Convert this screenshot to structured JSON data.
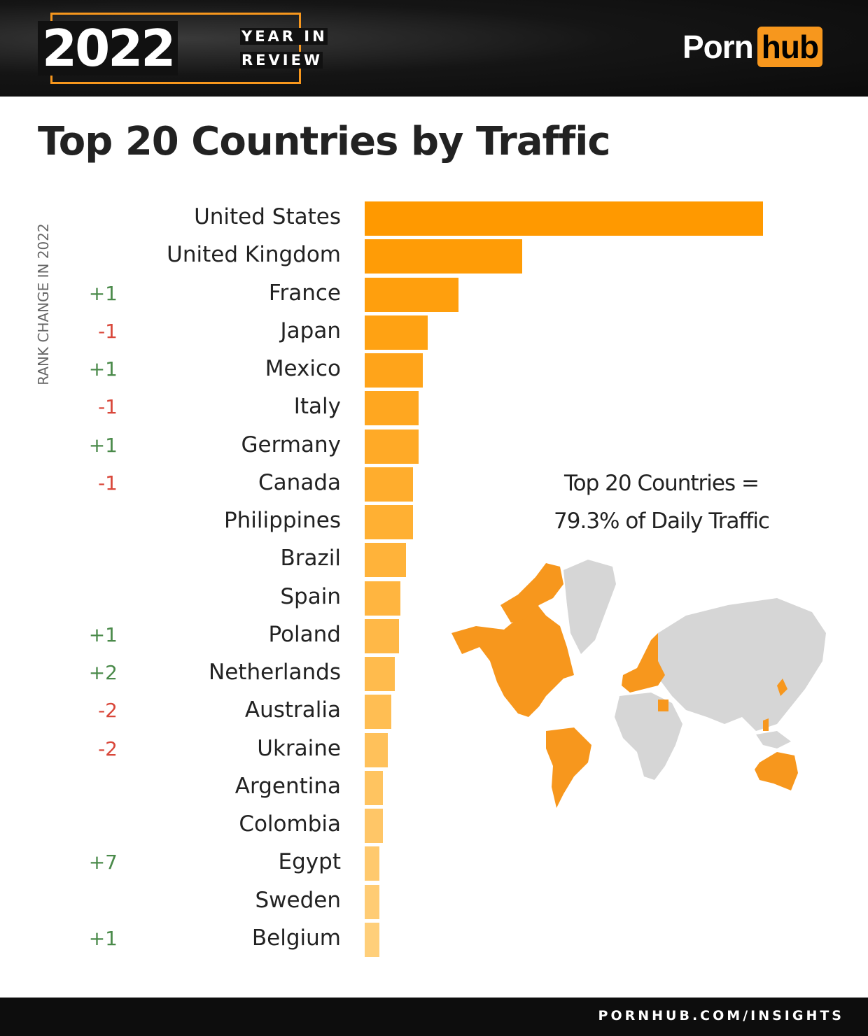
{
  "header": {
    "year": "2022",
    "subtitle_line1": "YEAR IN",
    "subtitle_line2": "REVIEW",
    "logo_part1": "Porn",
    "logo_part2": "hub",
    "accent_color": "#f7971d"
  },
  "chart_data": {
    "type": "bar",
    "orientation": "horizontal",
    "title": "Top 20 Countries by Traffic",
    "side_label": "RANK CHANGE IN 2022",
    "categories": [
      "United States",
      "United Kingdom",
      "France",
      "Japan",
      "Mexico",
      "Italy",
      "Germany",
      "Canada",
      "Philippines",
      "Brazil",
      "Spain",
      "Poland",
      "Netherlands",
      "Australia",
      "Ukraine",
      "Argentina",
      "Colombia",
      "Egypt",
      "Sweden",
      "Belgium"
    ],
    "values_relative": [
      100,
      39.5,
      23.6,
      15.8,
      14.6,
      13.5,
      13.5,
      12.1,
      12.1,
      10.4,
      9.0,
      8.6,
      7.6,
      6.7,
      5.8,
      4.6,
      4.6,
      3.7,
      3.7,
      3.7
    ],
    "rank_changes": [
      "",
      "",
      "+1",
      "-1",
      "+1",
      "-1",
      "+1",
      "-1",
      "",
      "",
      "",
      "+1",
      "+2",
      "-2",
      "-2",
      "",
      "",
      "+7",
      "",
      "+1"
    ],
    "colors": {
      "bar_start": "#ff9900",
      "bar_end": "#ffcf7a",
      "positive": "#4a8a4a",
      "negative": "#d9473a"
    },
    "axis_shown": false,
    "annotation_line1": "Top 20 Countries =",
    "annotation_line2": "79.3% of Daily Traffic"
  },
  "footer": {
    "text": "PORNHUB.COM/INSIGHTS"
  }
}
